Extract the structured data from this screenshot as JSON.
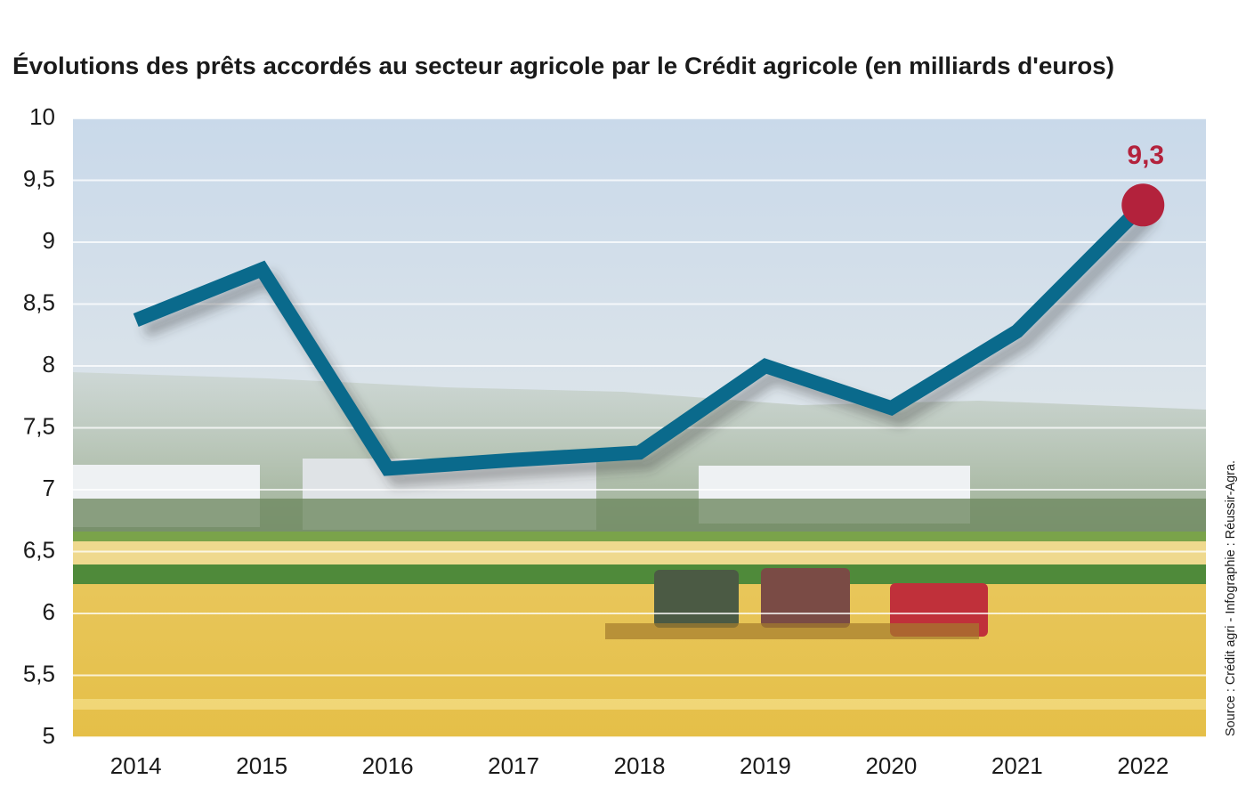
{
  "chart_data": {
    "type": "line",
    "title": "Évolutions des prêts accordés au secteur agricole par le Crédit agricole (en milliards d'euros)",
    "source": "Source : Crédit agri - Infographie : Réussir-Agra.",
    "categories": [
      "2014",
      "2015",
      "2016",
      "2017",
      "2018",
      "2019",
      "2020",
      "2021",
      "2022"
    ],
    "series": [
      {
        "color": "#0a6a8c",
        "values": [
          8.37,
          8.78,
          7.17,
          7.24,
          7.3,
          8.0,
          7.66,
          8.28,
          9.3
        ],
        "value_labels": [
          null,
          null,
          null,
          null,
          null,
          null,
          null,
          null,
          "9,3"
        ]
      }
    ],
    "marker_color": "#b3223c",
    "ylim": [
      5,
      10
    ],
    "yticks": [
      5,
      {
        "value": 5.5,
        "label": "5,5"
      },
      6,
      {
        "value": 6.5,
        "label": "6,5"
      },
      7,
      {
        "value": 7.5,
        "label": "7,5"
      },
      8,
      {
        "value": 8.5,
        "label": "8,5"
      },
      9,
      {
        "value": 9.5,
        "label": "9,5"
      },
      10
    ],
    "grid": true
  }
}
